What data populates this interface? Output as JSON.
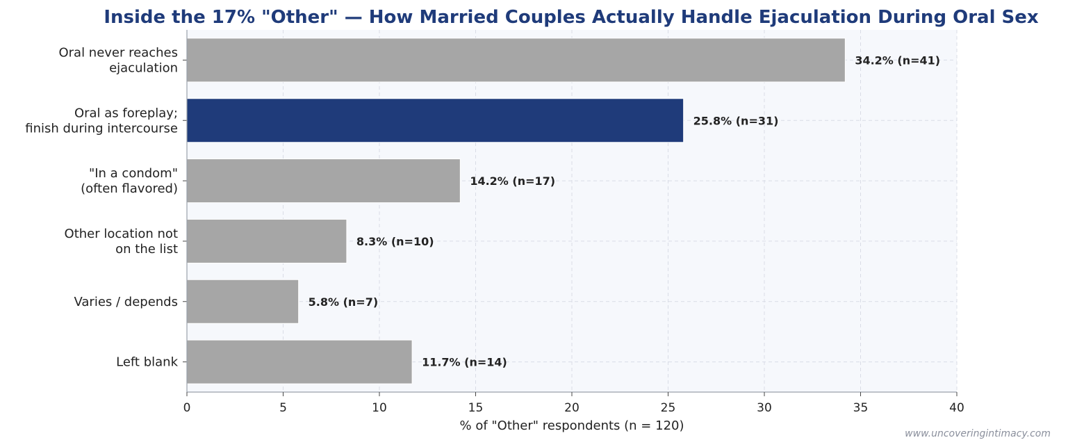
{
  "chart_data": {
    "type": "bar",
    "orientation": "horizontal",
    "title": "Inside the 17% \"Other\" — How Married Couples Actually Handle Ejaculation During Oral Sex",
    "xlabel": "% of \"Other\" respondents (n = 120)",
    "ylabel": "",
    "xlim": [
      0,
      40
    ],
    "xticks": [
      0,
      5,
      10,
      15,
      20,
      25,
      30,
      35,
      40
    ],
    "grid": true,
    "categories": [
      [
        "Oral never reaches",
        "ejaculation"
      ],
      [
        "Oral as foreplay;",
        "finish during intercourse"
      ],
      [
        "\"In a condom\"",
        "(often flavored)"
      ],
      [
        "Other location not",
        "on the list"
      ],
      [
        "Varies / depends"
      ],
      [
        "Left blank"
      ]
    ],
    "values": [
      34.2,
      25.8,
      14.2,
      8.3,
      5.8,
      11.7
    ],
    "data_labels": [
      "34.2%  (n=41)",
      "25.8%  (n=31)",
      "14.2%  (n=17)",
      "8.3%  (n=10)",
      "5.8%  (n=7)",
      "11.7%  (n=14)"
    ],
    "highlight_index": 1
  },
  "colors": {
    "title": "#1f3b7a",
    "highlight": "#1f3b7a",
    "bar": "#a6a6a6",
    "plot_bg": "#f6f8fc",
    "grid": "#d9dce6",
    "axis": "#9aa0aa"
  },
  "watermark": "www.uncoveringintimacy.com"
}
